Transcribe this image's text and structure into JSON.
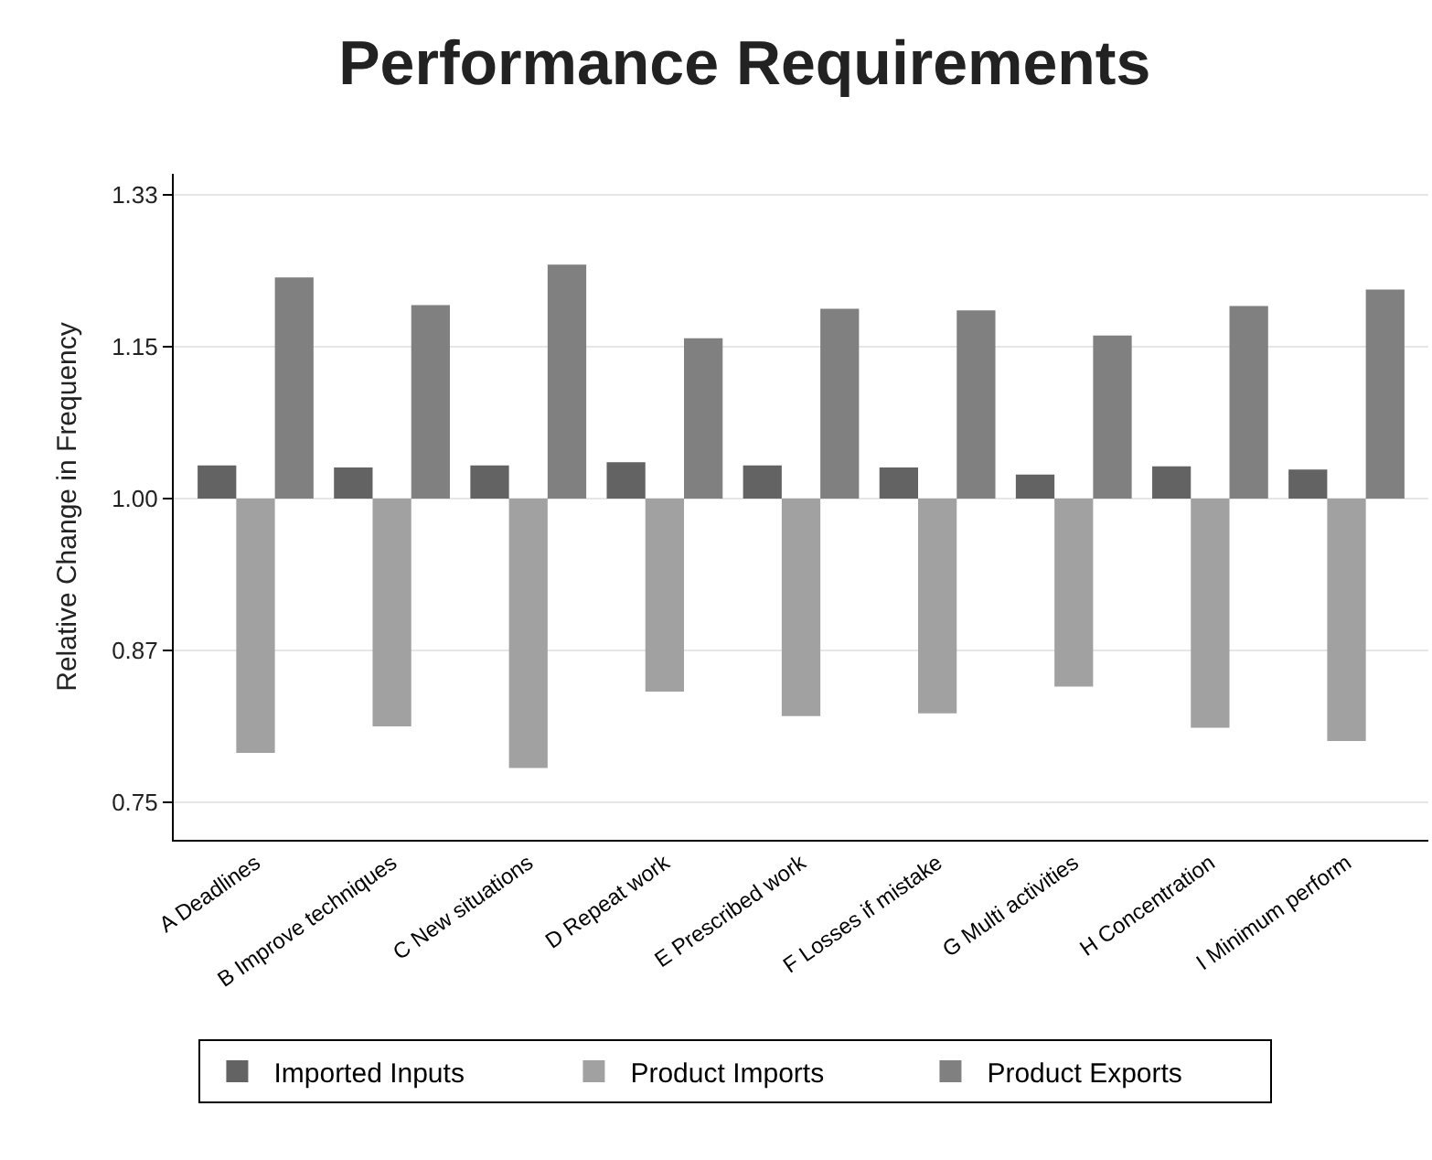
{
  "chart_data": {
    "type": "bar",
    "title": "Performance Requirements",
    "ylabel": "Relative Change in Frequency",
    "categories": [
      "A Deadlines",
      "B Improve techniques",
      "C New situations",
      "D Repeat work",
      "E Prescribed work",
      "F Losses if mistake",
      "G Multi activities",
      "H Concentration",
      "I Minimum perform"
    ],
    "series": [
      {
        "name": "Imported Inputs",
        "color": "#636363",
        "base": [
          1,
          1,
          1,
          1,
          1,
          1,
          1,
          1,
          1
        ],
        "values": [
          0.032,
          0.03,
          0.032,
          0.035,
          0.032,
          0.03,
          0.023,
          0.031,
          0.028
        ]
      },
      {
        "name": "Product Imports",
        "color": "#a1a1a1",
        "base": [
          1,
          1,
          1,
          1,
          1,
          1,
          1,
          1,
          1
        ],
        "values": [
          -0.214,
          -0.194,
          -0.225,
          -0.167,
          -0.186,
          -0.184,
          -0.163,
          -0.195,
          -0.205
        ]
      },
      {
        "name": "Product Exports",
        "color": "#808080",
        "base": [
          1,
          1,
          1,
          1,
          1,
          1,
          1,
          1,
          1
        ],
        "values": [
          0.233,
          0.201,
          0.248,
          0.164,
          0.197,
          0.195,
          0.167,
          0.2,
          0.219
        ]
      }
    ],
    "log": "y",
    "ylim": [
      0.724,
      1.36
    ],
    "yticks": [
      {
        "value": 0.75,
        "label": "0.75"
      },
      {
        "value": 0.866,
        "label": "0.87"
      },
      {
        "value": 1,
        "label": "1.00"
      },
      {
        "value": 1.1547,
        "label": "1.15"
      },
      {
        "value": 1.3333,
        "label": "1.33"
      }
    ],
    "grid": "y",
    "legend": "bottom"
  }
}
